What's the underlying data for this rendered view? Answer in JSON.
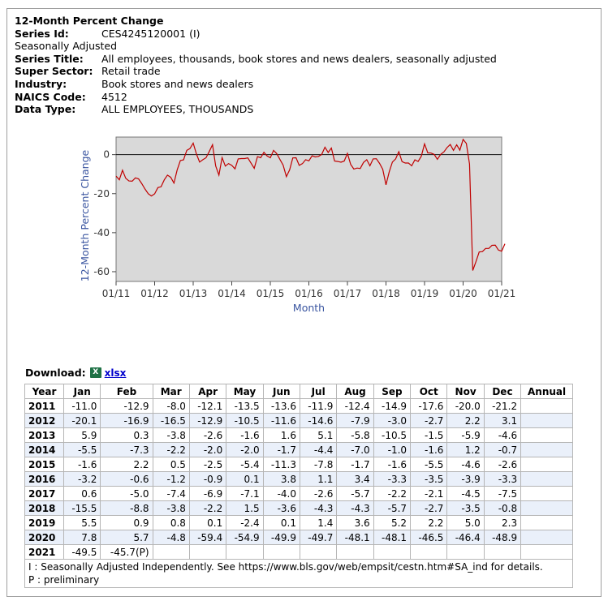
{
  "header": {
    "title": "12-Month Percent Change",
    "series_id_label": "Series Id:",
    "series_id": "CES4245120001 (I)",
    "adjustment": "Seasonally Adjusted",
    "fields": [
      {
        "label": "Series Title:",
        "value": "All employees, thousands, book stores and news dealers, seasonally adjusted"
      },
      {
        "label": "Super Sector:",
        "value": "Retail trade"
      },
      {
        "label": "Industry:",
        "value": "Book stores and news dealers"
      },
      {
        "label": "NAICS Code:",
        "value": "4512"
      },
      {
        "label": "Data Type:",
        "value": "ALL EMPLOYEES, THOUSANDS"
      }
    ]
  },
  "download": {
    "label": "Download:",
    "icon": "excel-icon",
    "link_text": "xlsx"
  },
  "chart_data": {
    "type": "line",
    "title": "",
    "xlabel": "Month",
    "ylabel": "12-Month Percent Change",
    "ylim": [
      -65,
      9
    ],
    "yticks": [
      0,
      -20,
      -40,
      -60
    ],
    "xticks": [
      "01/11",
      "01/12",
      "01/13",
      "01/14",
      "01/15",
      "01/16",
      "01/17",
      "01/18",
      "01/19",
      "01/20",
      "01/21"
    ],
    "grid": false,
    "line_color": "#c00000",
    "background": "#d9d9d9",
    "series": [
      {
        "values": [
          -11.0,
          -12.9,
          -8.0,
          -12.1,
          -13.5,
          -13.6,
          -11.9,
          -12.4,
          -14.9,
          -17.6,
          -20.0,
          -21.2,
          -20.1,
          -16.9,
          -16.5,
          -12.9,
          -10.5,
          -11.6,
          -14.6,
          -7.9,
          -3.0,
          -2.7,
          2.2,
          3.1,
          5.9,
          0.3,
          -3.8,
          -2.6,
          -1.6,
          1.6,
          5.1,
          -5.8,
          -10.5,
          -1.5,
          -5.9,
          -4.6,
          -5.5,
          -7.3,
          -2.2,
          -2.0,
          -2.0,
          -1.7,
          -4.4,
          -7.0,
          -1.0,
          -1.6,
          1.2,
          -0.7,
          -1.6,
          2.2,
          0.5,
          -2.5,
          -5.4,
          -11.3,
          -7.8,
          -1.7,
          -1.6,
          -5.5,
          -4.6,
          -2.6,
          -3.2,
          -0.6,
          -1.2,
          -0.9,
          0.1,
          3.8,
          1.1,
          3.4,
          -3.3,
          -3.5,
          -3.9,
          -3.3,
          0.6,
          -5.0,
          -7.4,
          -6.9,
          -7.1,
          -4.0,
          -2.6,
          -5.7,
          -2.2,
          -2.1,
          -4.5,
          -7.5,
          -15.5,
          -8.8,
          -3.8,
          -2.2,
          1.5,
          -3.6,
          -4.3,
          -4.3,
          -5.7,
          -2.7,
          -3.5,
          -0.8,
          5.5,
          0.9,
          0.8,
          0.1,
          -2.4,
          0.1,
          1.4,
          3.6,
          5.2,
          2.2,
          5.0,
          2.3,
          7.8,
          5.7,
          -4.8,
          -59.4,
          -54.9,
          -49.9,
          -49.7,
          -48.1,
          -48.1,
          -46.5,
          -46.4,
          -48.9,
          -49.5,
          -45.7
        ]
      }
    ]
  },
  "table": {
    "columns": [
      "Year",
      "Jan",
      "Feb",
      "Mar",
      "Apr",
      "May",
      "Jun",
      "Jul",
      "Aug",
      "Sep",
      "Oct",
      "Nov",
      "Dec",
      "Annual"
    ],
    "rows": [
      [
        "2011",
        "-11.0",
        "-12.9",
        "-8.0",
        "-12.1",
        "-13.5",
        "-13.6",
        "-11.9",
        "-12.4",
        "-14.9",
        "-17.6",
        "-20.0",
        "-21.2",
        ""
      ],
      [
        "2012",
        "-20.1",
        "-16.9",
        "-16.5",
        "-12.9",
        "-10.5",
        "-11.6",
        "-14.6",
        "-7.9",
        "-3.0",
        "-2.7",
        "2.2",
        "3.1",
        ""
      ],
      [
        "2013",
        "5.9",
        "0.3",
        "-3.8",
        "-2.6",
        "-1.6",
        "1.6",
        "5.1",
        "-5.8",
        "-10.5",
        "-1.5",
        "-5.9",
        "-4.6",
        ""
      ],
      [
        "2014",
        "-5.5",
        "-7.3",
        "-2.2",
        "-2.0",
        "-2.0",
        "-1.7",
        "-4.4",
        "-7.0",
        "-1.0",
        "-1.6",
        "1.2",
        "-0.7",
        ""
      ],
      [
        "2015",
        "-1.6",
        "2.2",
        "0.5",
        "-2.5",
        "-5.4",
        "-11.3",
        "-7.8",
        "-1.7",
        "-1.6",
        "-5.5",
        "-4.6",
        "-2.6",
        ""
      ],
      [
        "2016",
        "-3.2",
        "-0.6",
        "-1.2",
        "-0.9",
        "0.1",
        "3.8",
        "1.1",
        "3.4",
        "-3.3",
        "-3.5",
        "-3.9",
        "-3.3",
        ""
      ],
      [
        "2017",
        "0.6",
        "-5.0",
        "-7.4",
        "-6.9",
        "-7.1",
        "-4.0",
        "-2.6",
        "-5.7",
        "-2.2",
        "-2.1",
        "-4.5",
        "-7.5",
        ""
      ],
      [
        "2018",
        "-15.5",
        "-8.8",
        "-3.8",
        "-2.2",
        "1.5",
        "-3.6",
        "-4.3",
        "-4.3",
        "-5.7",
        "-2.7",
        "-3.5",
        "-0.8",
        ""
      ],
      [
        "2019",
        "5.5",
        "0.9",
        "0.8",
        "0.1",
        "-2.4",
        "0.1",
        "1.4",
        "3.6",
        "5.2",
        "2.2",
        "5.0",
        "2.3",
        ""
      ],
      [
        "2020",
        "7.8",
        "5.7",
        "-4.8",
        "-59.4",
        "-54.9",
        "-49.9",
        "-49.7",
        "-48.1",
        "-48.1",
        "-46.5",
        "-46.4",
        "-48.9",
        ""
      ],
      [
        "2021",
        "-49.5",
        "-45.7(P)",
        "",
        "",
        "",
        "",
        "",
        "",
        "",
        "",
        "",
        "",
        ""
      ]
    ],
    "notes": [
      "I : Seasonally Adjusted Independently. See https://www.bls.gov/web/empsit/cestn.htm#SA_ind for details.",
      "P : preliminary"
    ]
  }
}
